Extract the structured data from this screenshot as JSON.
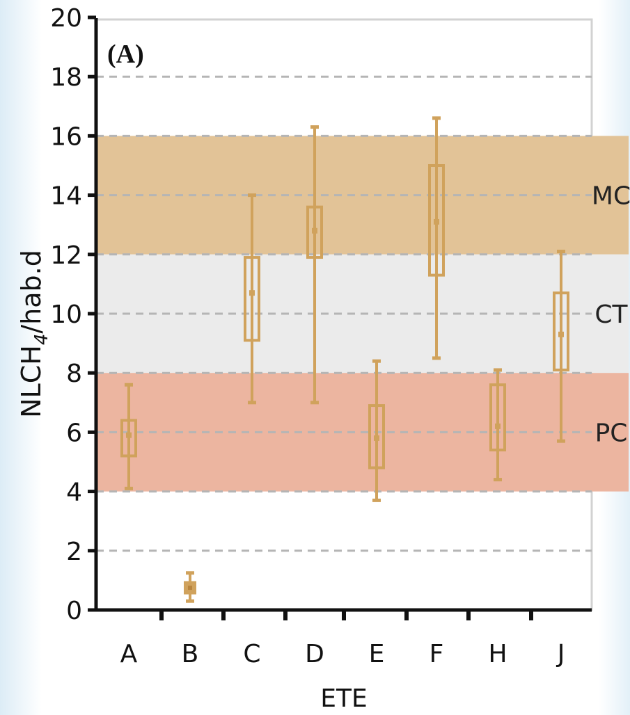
{
  "chart_data": {
    "type": "boxplot",
    "panel_label": "(A)",
    "xlabel": "ETE",
    "ylabel_main": "NLCH",
    "ylabel_sub": "4",
    "ylabel_tail": "/hab.d",
    "ylim": [
      0,
      20
    ],
    "yticks": [
      0,
      2,
      4,
      6,
      8,
      10,
      12,
      14,
      16,
      18,
      20
    ],
    "grid": "dashed horizontal",
    "categories": [
      "A",
      "B",
      "C",
      "D",
      "E",
      "F",
      "H",
      "J"
    ],
    "boxes": [
      {
        "label": "A",
        "min": 4.1,
        "q1": 5.2,
        "median": 5.9,
        "q3": 6.4,
        "max": 7.6
      },
      {
        "label": "B",
        "min": 0.3,
        "q1": 0.55,
        "median": 0.75,
        "q3": 0.95,
        "max": 1.25
      },
      {
        "label": "C",
        "min": 7.0,
        "q1": 9.1,
        "median": 10.7,
        "q3": 11.9,
        "max": 14.0
      },
      {
        "label": "D",
        "min": 7.0,
        "q1": 11.9,
        "median": 12.8,
        "q3": 13.6,
        "max": 16.3
      },
      {
        "label": "E",
        "min": 3.7,
        "q1": 4.8,
        "median": 5.8,
        "q3": 6.9,
        "max": 8.4
      },
      {
        "label": "F",
        "min": 8.5,
        "q1": 11.3,
        "median": 13.1,
        "q3": 15.0,
        "max": 16.6
      },
      {
        "label": "H",
        "min": 4.4,
        "q1": 5.4,
        "median": 6.2,
        "q3": 7.6,
        "max": 8.1
      },
      {
        "label": "J",
        "min": 5.7,
        "q1": 8.1,
        "median": 9.3,
        "q3": 10.7,
        "max": 12.1
      }
    ],
    "bands": [
      {
        "label": "MC",
        "from": 12,
        "to": 16,
        "color": "#e2c397"
      },
      {
        "label": "CT",
        "from": 8,
        "to": 12,
        "color": "#ebebeb"
      },
      {
        "label": "PC",
        "from": 4,
        "to": 8,
        "color": "#ecb5a0"
      }
    ],
    "box_color": "#d0a25c"
  }
}
